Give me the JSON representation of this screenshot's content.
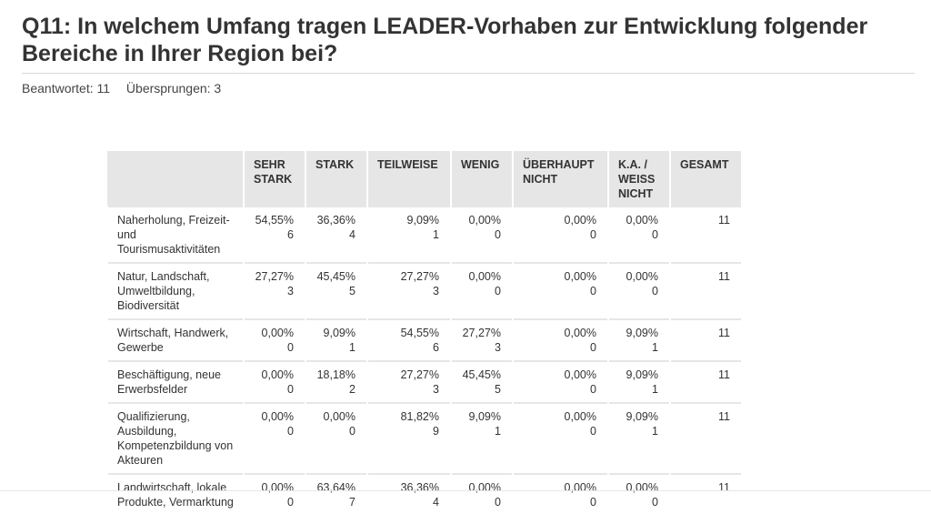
{
  "page": {
    "title": "Q11: In welchem Umfang tragen LEADER-Vorhaben zur Entwicklung folgender Bereiche in Ihrer Region bei?",
    "answered": "Beantwortet: 11",
    "skipped": "Übersprungen: 3"
  },
  "table": {
    "headers": [
      "",
      "SEHR STARK",
      "STARK",
      "TEILWEISE",
      "WENIG",
      "ÜBERHAUPT NICHT",
      "K.A. / WEISS NICHT",
      "GESAMT"
    ],
    "rows": [
      {
        "label": "Naherholung, Freizeit- und Tourismusaktivitäten",
        "cells": [
          {
            "pct": "54,55%",
            "n": "6"
          },
          {
            "pct": "36,36%",
            "n": "4"
          },
          {
            "pct": "9,09%",
            "n": "1"
          },
          {
            "pct": "0,00%",
            "n": "0"
          },
          {
            "pct": "0,00%",
            "n": "0"
          },
          {
            "pct": "0,00%",
            "n": "0"
          }
        ],
        "total": "11"
      },
      {
        "label": "Natur, Landschaft, Umweltbildung, Biodiversität",
        "cells": [
          {
            "pct": "27,27%",
            "n": "3"
          },
          {
            "pct": "45,45%",
            "n": "5"
          },
          {
            "pct": "27,27%",
            "n": "3"
          },
          {
            "pct": "0,00%",
            "n": "0"
          },
          {
            "pct": "0,00%",
            "n": "0"
          },
          {
            "pct": "0,00%",
            "n": "0"
          }
        ],
        "total": "11"
      },
      {
        "label": "Wirtschaft, Handwerk, Gewerbe",
        "cells": [
          {
            "pct": "0,00%",
            "n": "0"
          },
          {
            "pct": "9,09%",
            "n": "1"
          },
          {
            "pct": "54,55%",
            "n": "6"
          },
          {
            "pct": "27,27%",
            "n": "3"
          },
          {
            "pct": "0,00%",
            "n": "0"
          },
          {
            "pct": "9,09%",
            "n": "1"
          }
        ],
        "total": "11"
      },
      {
        "label": "Beschäftigung, neue Erwerbsfelder",
        "cells": [
          {
            "pct": "0,00%",
            "n": "0"
          },
          {
            "pct": "18,18%",
            "n": "2"
          },
          {
            "pct": "27,27%",
            "n": "3"
          },
          {
            "pct": "45,45%",
            "n": "5"
          },
          {
            "pct": "0,00%",
            "n": "0"
          },
          {
            "pct": "9,09%",
            "n": "1"
          }
        ],
        "total": "11"
      },
      {
        "label": "Qualifizierung, Ausbildung, Kompetenzbildung von Akteuren",
        "cells": [
          {
            "pct": "0,00%",
            "n": "0"
          },
          {
            "pct": "0,00%",
            "n": "0"
          },
          {
            "pct": "81,82%",
            "n": "9"
          },
          {
            "pct": "9,09%",
            "n": "1"
          },
          {
            "pct": "0,00%",
            "n": "0"
          },
          {
            "pct": "9,09%",
            "n": "1"
          }
        ],
        "total": "11"
      },
      {
        "label": "Landwirtschaft, lokale Produkte, Vermarktung",
        "cells": [
          {
            "pct": "0,00%",
            "n": "0"
          },
          {
            "pct": "63,64%",
            "n": "7"
          },
          {
            "pct": "36,36%",
            "n": "4"
          },
          {
            "pct": "0,00%",
            "n": "0"
          },
          {
            "pct": "0,00%",
            "n": "0"
          },
          {
            "pct": "0,00%",
            "n": "0"
          }
        ],
        "total": "11"
      }
    ]
  }
}
